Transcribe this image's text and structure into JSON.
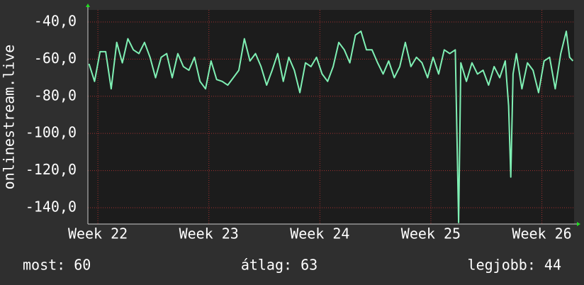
{
  "chart_data": {
    "type": "line",
    "y_label": "onlinestream.live",
    "x": [
      21.92,
      21.97,
      22.02,
      22.07,
      22.12,
      22.17,
      22.22,
      22.27,
      22.32,
      22.37,
      22.42,
      22.47,
      22.52,
      22.57,
      22.62,
      22.67,
      22.72,
      22.77,
      22.82,
      22.87,
      22.92,
      22.97,
      23.02,
      23.07,
      23.12,
      23.17,
      23.22,
      23.27,
      23.32,
      23.37,
      23.42,
      23.47,
      23.52,
      23.57,
      23.62,
      23.67,
      23.72,
      23.77,
      23.82,
      23.87,
      23.92,
      23.97,
      24.02,
      24.07,
      24.12,
      24.17,
      24.22,
      24.27,
      24.32,
      24.37,
      24.42,
      24.47,
      24.52,
      24.57,
      24.62,
      24.67,
      24.72,
      24.77,
      24.82,
      24.87,
      24.92,
      24.97,
      25.02,
      25.07,
      25.12,
      25.17,
      25.22,
      25.25,
      25.27,
      25.32,
      25.37,
      25.42,
      25.47,
      25.52,
      25.57,
      25.62,
      25.67,
      25.7,
      25.72,
      25.74,
      25.77,
      25.82,
      25.87,
      25.92,
      25.97,
      26.02,
      26.07,
      26.12,
      26.17,
      26.22,
      26.25,
      26.28
    ],
    "series": [
      {
        "color": "#7ff0b4",
        "values": [
          -62.5,
          -72,
          -56,
          -56,
          -76,
          -51,
          -62,
          -49,
          -55,
          -57,
          -51,
          -59,
          -70,
          -59,
          -57,
          -70,
          -57,
          -64,
          -66,
          -59,
          -72,
          -76,
          -61,
          -71,
          -72,
          -74,
          -70,
          -66,
          -49,
          -61,
          -57,
          -64,
          -74,
          -66,
          -57,
          -72,
          -59,
          -66,
          -78,
          -62,
          -64,
          -59,
          -68,
          -72,
          -64,
          -51,
          -55,
          -62,
          -47,
          -45,
          -55,
          -55,
          -62,
          -68,
          -61,
          -70,
          -64,
          -51,
          -64,
          -59,
          -62,
          -70,
          -59,
          -68,
          -55,
          -57,
          -55,
          -148,
          -62,
          -72,
          -62,
          -68,
          -66,
          -74,
          -64,
          -70,
          -61,
          -85,
          -123.5,
          -68,
          -57,
          -76,
          -62,
          -66,
          -78,
          -61,
          -59,
          -76,
          -57,
          -45,
          -59,
          -61
        ]
      }
    ],
    "xlim": [
      21.91,
      26.29
    ],
    "ylim": [
      -148.8,
      -33.5
    ],
    "xticks": [
      {
        "value": 22,
        "label": "Week 22"
      },
      {
        "value": 23,
        "label": "Week 23"
      },
      {
        "value": 24,
        "label": "Week 24"
      },
      {
        "value": 25,
        "label": "Week 25"
      },
      {
        "value": 26,
        "label": "Week 26"
      }
    ],
    "yticks": [
      {
        "value": -40,
        "label": "-40,0"
      },
      {
        "value": -60,
        "label": "-60,0"
      },
      {
        "value": -80,
        "label": "-80,0"
      },
      {
        "value": -100,
        "label": "-100,0"
      },
      {
        "value": -120,
        "label": "-120,0"
      },
      {
        "value": -140,
        "label": "-140,0"
      }
    ],
    "grid": true,
    "footer": [
      "most: 60",
      "átlag: 63",
      "legjobb: 44"
    ]
  }
}
